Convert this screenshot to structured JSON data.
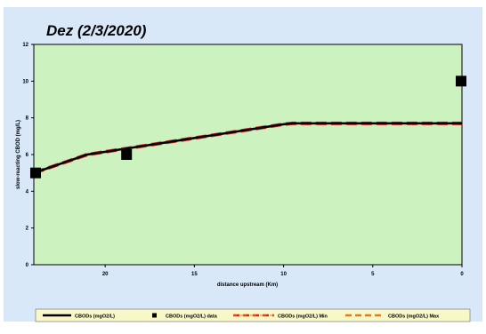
{
  "chart_data": {
    "type": "line",
    "title": "Dez (2/3/2020)",
    "xlabel": "distance upstream (Km)",
    "ylabel": "slow-reacting CBOD (mg/L)",
    "xlim": [
      24,
      0
    ],
    "ylim": [
      0,
      12
    ],
    "x_ticks": [
      "20",
      "15",
      "10",
      "5",
      "0"
    ],
    "x_tick_values": [
      20,
      15,
      10,
      5,
      0
    ],
    "y_ticks": [
      "0",
      "2",
      "4",
      "6",
      "8",
      "10",
      "12"
    ],
    "y_tick_values": [
      0,
      2,
      4,
      6,
      8,
      10,
      12
    ],
    "grid": false,
    "legend_position": "bottom",
    "plot_background": "#ccf2c0",
    "frame_background": "#d8e8f8",
    "legend_background": "#f7f7c8",
    "series": [
      {
        "name": "CBODs (mgO2/L)",
        "kind": "line",
        "color": "#000000",
        "x": [
          24,
          21,
          19,
          17,
          15,
          13,
          11,
          10,
          9.5,
          9,
          7,
          5,
          3,
          1,
          0
        ],
        "y": [
          5.0,
          6.0,
          6.3,
          6.6,
          6.9,
          7.2,
          7.5,
          7.65,
          7.7,
          7.7,
          7.7,
          7.7,
          7.7,
          7.7,
          7.7
        ]
      },
      {
        "name": "CBODs (mgO2/L) data",
        "kind": "scatter",
        "color": "#000000",
        "x": [
          23.9,
          18.8,
          0.05
        ],
        "y": [
          5.0,
          6.0,
          10.0
        ]
      },
      {
        "name": "CBODs (mgO2/L) Min",
        "kind": "dashed",
        "color": "#e0221a",
        "x": [
          24,
          21,
          19,
          17,
          15,
          13,
          11,
          10,
          9.5,
          9,
          7,
          5,
          3,
          1,
          0
        ],
        "y": [
          5.0,
          6.0,
          6.3,
          6.6,
          6.9,
          7.2,
          7.5,
          7.65,
          7.7,
          7.7,
          7.7,
          7.7,
          7.7,
          7.7,
          7.7
        ]
      },
      {
        "name": "CBODs (mgO2/L) Max",
        "kind": "dashed",
        "color": "#e07a1a",
        "x": [
          24,
          21,
          19,
          17,
          15,
          13,
          11,
          10,
          9.5,
          9,
          7,
          5,
          3,
          1,
          0
        ],
        "y": [
          5.0,
          6.0,
          6.3,
          6.6,
          6.9,
          7.2,
          7.5,
          7.65,
          7.7,
          7.7,
          7.7,
          7.7,
          7.7,
          7.7,
          7.7
        ]
      }
    ]
  }
}
